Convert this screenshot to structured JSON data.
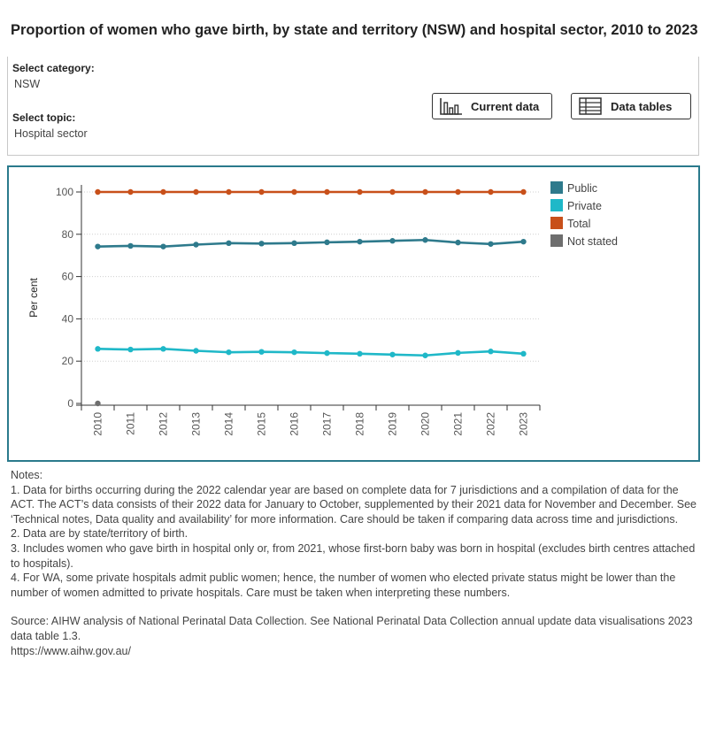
{
  "title": "Proportion of women who gave birth, by state and territory (NSW) and hospital sector, 2010 to 2023",
  "filters": {
    "category_label": "Select category:",
    "category_value": "NSW",
    "topic_label": "Select topic:",
    "topic_value": "Hospital sector"
  },
  "buttons": {
    "current_data": "Current data",
    "data_tables": "Data tables"
  },
  "colors": {
    "Public": "#2e7a8c",
    "Private": "#1fb8c8",
    "Total": "#c8501a",
    "Not stated": "#6e6e6e",
    "border": "#2a7a8c"
  },
  "chart_data": {
    "type": "line",
    "ylabel": "Per cent",
    "xlabel": "",
    "ylim": [
      0,
      100
    ],
    "yticks": [
      0,
      20,
      40,
      60,
      80,
      100
    ],
    "x": [
      "2010",
      "2011",
      "2012",
      "2013",
      "2014",
      "2015",
      "2016",
      "2017",
      "2018",
      "2019",
      "2020",
      "2021",
      "2022",
      "2023"
    ],
    "legend_position": "right",
    "grid": "horizontal dotted",
    "series": [
      {
        "name": "Public",
        "values": [
          74.2,
          74.5,
          74.2,
          75.1,
          75.8,
          75.6,
          75.8,
          76.2,
          76.5,
          76.9,
          77.3,
          76.1,
          75.4,
          76.5
        ]
      },
      {
        "name": "Private",
        "values": [
          25.8,
          25.5,
          25.8,
          24.9,
          24.2,
          24.4,
          24.2,
          23.8,
          23.5,
          23.1,
          22.7,
          23.9,
          24.6,
          23.5
        ]
      },
      {
        "name": "Total",
        "values": [
          100,
          100,
          100,
          100,
          100,
          100,
          100,
          100,
          100,
          100,
          100,
          100,
          100,
          100
        ]
      },
      {
        "name": "Not stated",
        "values": [
          0,
          null,
          null,
          null,
          null,
          null,
          null,
          null,
          null,
          null,
          null,
          null,
          null,
          null
        ]
      }
    ]
  },
  "notes": {
    "heading": "Notes:",
    "items": [
      "1. Data for births occurring during the 2022 calendar year are based on complete data for 7 jurisdictions and a compilation of data for the ACT. The ACT’s data consists of their 2022 data for January to October, supplemented by their 2021 data for November and December. See ‘Technical notes, Data quality and availability’ for more information. Care should be taken if comparing data across time and jurisdictions.",
      "2. Data are by state/territory of birth.",
      "3. Includes women who gave birth in hospital only or, from 2021, whose first-born baby was born in hospital (excludes birth centres attached to hospitals).",
      "4. For WA, some private hospitals admit public women; hence, the number of women who elected private status might be lower than the number of women admitted to private hospitals. Care must be taken when interpreting these numbers."
    ],
    "source": "Source: AIHW analysis of National Perinatal Data Collection. See National Perinatal Data Collection annual update data visualisations 2023 data table 1.3.",
    "url": "https://www.aihw.gov.au/"
  }
}
